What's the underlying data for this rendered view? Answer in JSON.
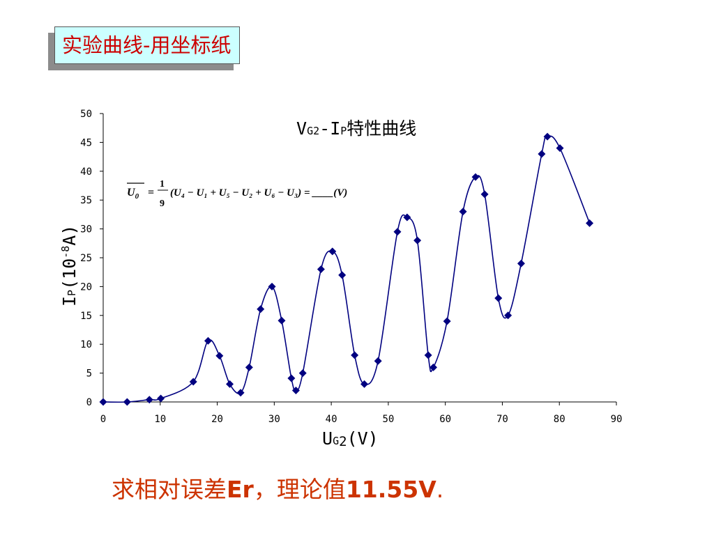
{
  "slide": {
    "title": "实验曲线-用坐标纸",
    "bottom": {
      "prefix": "求相对误差",
      "bold1": "Er",
      "mid": "，理论值",
      "bold2": "11.55V",
      "suffix": "."
    },
    "colors": {
      "title_text": "#cc0000",
      "title_bg": "#ccffff",
      "bottom_text": "#cc3300",
      "series": "#000080"
    }
  },
  "chart_data": {
    "type": "line",
    "title": {
      "main": "V",
      "main_sub": "G2",
      "dash": "-",
      "ip": "I",
      "ip_sub": "P",
      "rest": "特性曲线"
    },
    "xlabel": {
      "main": "U",
      "sub": "G",
      "sub2": "2",
      "unit": "(V)"
    },
    "ylabel": {
      "main": "I",
      "sub": "P",
      "open": "(10",
      "exp": "-8",
      "unit": "A)"
    },
    "xlim": [
      0,
      90
    ],
    "ylim": [
      0,
      50
    ],
    "xticks": [
      0,
      10,
      20,
      30,
      40,
      50,
      60,
      70,
      80,
      90
    ],
    "yticks": [
      0,
      5,
      10,
      15,
      20,
      25,
      30,
      35,
      40,
      45,
      50
    ],
    "grid": false,
    "marker": "diamond",
    "smooth": true,
    "formula": {
      "lhs": "U",
      "lhs_sub": "0",
      "eq": "=",
      "num": "1",
      "den": "9",
      "body": "(U₄ − U₁ + U₅ − U₂ + U₆ − U₃) = ____(V)"
    },
    "series": [
      {
        "x": [
          0,
          4.2,
          8.1,
          10.1,
          15.8,
          18.4,
          20.4,
          22.2,
          24.1,
          25.6,
          27.6,
          29.6,
          31.3,
          33.0,
          33.8,
          35.0,
          38.2,
          40.2,
          41.9,
          44.1,
          45.8,
          48.2,
          51.6,
          53.3,
          55.1,
          57.0,
          57.9,
          60.3,
          63.1,
          65.3,
          66.9,
          69.3,
          71.0,
          73.3,
          76.9,
          77.9,
          80.1,
          85.3
        ],
        "y": [
          0,
          0,
          0.4,
          0.6,
          3.5,
          10.6,
          8.0,
          3.1,
          1.6,
          6.0,
          16.1,
          20.0,
          14.1,
          4.1,
          2.0,
          5.0,
          23.0,
          26.1,
          22.0,
          8.1,
          3.1,
          7.1,
          29.5,
          32.0,
          28.0,
          8.1,
          6.0,
          14.0,
          33.0,
          39.0,
          36.0,
          18.0,
          15.0,
          24.0,
          43.0,
          46.0,
          44.0,
          31.0
        ]
      }
    ]
  }
}
